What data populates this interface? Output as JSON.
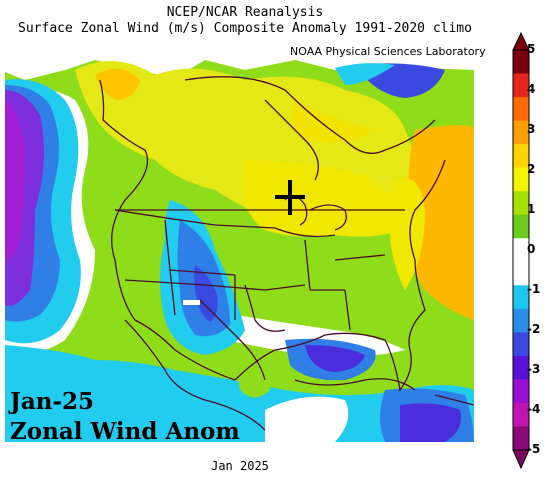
{
  "header": {
    "line1": "NCEP/NCAR Reanalysis",
    "line2": "Surface Zonal Wind (m/s) Composite Anomaly 1991-2020 climo",
    "lab": "NOAA Physical Sciences Laboratory"
  },
  "overlay": {
    "date": "Jan-25",
    "label": "Zonal Wind Anom"
  },
  "footer": "Jan 2025",
  "colorbar": {
    "ticks": [
      "5",
      "4",
      "3",
      "2",
      "1",
      "0",
      "-1",
      "-2",
      "-3",
      "-4",
      "-5"
    ],
    "colors": [
      "#7a0010",
      "#e4261c",
      "#ff6a00",
      "#ff9f00",
      "#ffd300",
      "#f5f500",
      "#a8e000",
      "#6ccc1e",
      "#ffffff",
      "#ffffff",
      "#1ec8ec",
      "#2a8ee6",
      "#3a4ae0",
      "#5a12d8",
      "#9a10d0",
      "#c014b0",
      "#8a0a7a"
    ]
  },
  "colors": {
    "outline": "#4a0d2a",
    "positive_low": "#9be000",
    "positive_mid": "#e8e800",
    "positive_high": "#ffb000",
    "negative_low": "#22ccee",
    "negative_mid": "#2f7fe6",
    "negative_high": "#4a2ddc",
    "negative_max": "#a01ed0"
  }
}
